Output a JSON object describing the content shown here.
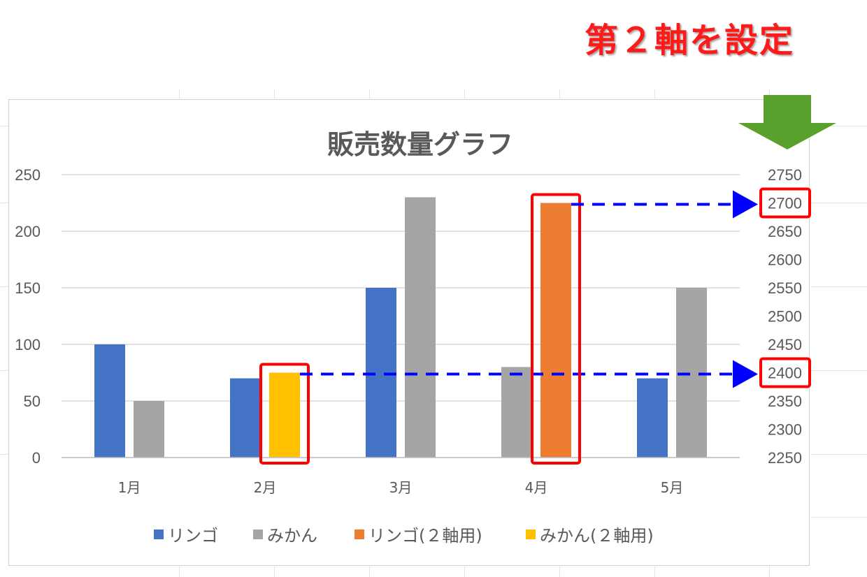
{
  "headline": "第２軸を設定",
  "chart_data": {
    "type": "bar",
    "title": "販売数量グラフ",
    "categories": [
      "1月",
      "2月",
      "3月",
      "4月",
      "5月"
    ],
    "ylim": [
      0,
      250
    ],
    "yticks": [
      "0",
      "50",
      "100",
      "150",
      "200",
      "250"
    ],
    "y2lim": [
      2250,
      2750
    ],
    "y2ticks": [
      "2250",
      "2300",
      "2350",
      "2400",
      "2450",
      "2500",
      "2550",
      "2600",
      "2650",
      "2700",
      "2750"
    ],
    "series": [
      {
        "name": "リンゴ",
        "axis": "primary",
        "color": "#4472C4",
        "values": [
          100,
          70,
          150,
          null,
          70
        ]
      },
      {
        "name": "みかん",
        "axis": "primary",
        "color": "#A5A5A5",
        "values": [
          50,
          null,
          230,
          80,
          150
        ]
      },
      {
        "name": "リンゴ(２軸用)",
        "axis": "secondary",
        "color": "#ED7D31",
        "values": [
          null,
          null,
          null,
          2700,
          null
        ]
      },
      {
        "name": "みかん(２軸用)",
        "axis": "secondary",
        "color": "#FFC000",
        "values": [
          null,
          2400,
          null,
          null,
          null
        ]
      }
    ],
    "legend_position": "bottom",
    "grid": true,
    "annotations": [
      {
        "type": "highlight",
        "target": "みかん(２軸用) 2月",
        "points_to_y2": "2400"
      },
      {
        "type": "highlight",
        "target": "リンゴ(２軸用) 4月",
        "points_to_y2": "2700"
      }
    ],
    "highlight_color": "#FF0000",
    "arrow_color": "#0000FF",
    "indicator_color": "#5AA02C"
  }
}
